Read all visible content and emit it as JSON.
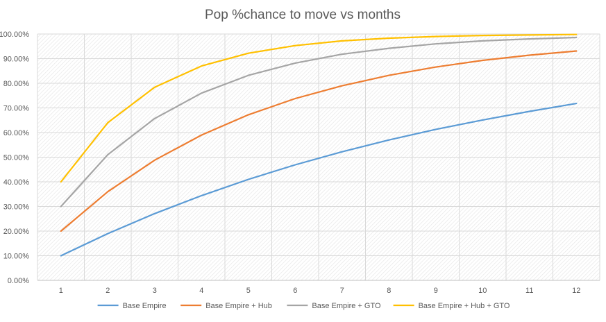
{
  "chart_data": {
    "type": "line",
    "title": "Pop %chance to move vs months",
    "xlabel": "",
    "ylabel": "",
    "x": [
      1,
      2,
      3,
      4,
      5,
      6,
      7,
      8,
      9,
      10,
      11,
      12
    ],
    "ylim": [
      0,
      100
    ],
    "y_ticks": [
      "0.00%",
      "10.00%",
      "20.00%",
      "30.00%",
      "40.00%",
      "50.00%",
      "60.00%",
      "70.00%",
      "80.00%",
      "90.00%",
      "100.00%"
    ],
    "grid": true,
    "legend_position": "bottom",
    "series": [
      {
        "name": "Base Empire",
        "color": "#5B9BD5",
        "values": [
          10.0,
          19.0,
          27.1,
          34.4,
          41.0,
          46.9,
          52.2,
          57.0,
          61.3,
          65.1,
          68.6,
          71.8
        ]
      },
      {
        "name": "Base Empire + Hub",
        "color": "#ED7D31",
        "values": [
          20.0,
          36.0,
          48.8,
          59.0,
          67.2,
          73.8,
          79.0,
          83.2,
          86.6,
          89.3,
          91.4,
          93.1
        ]
      },
      {
        "name": "Base Empire + GTO",
        "color": "#A5A5A5",
        "values": [
          30.0,
          51.0,
          65.7,
          76.0,
          83.2,
          88.2,
          91.8,
          94.2,
          96.0,
          97.2,
          98.0,
          98.6
        ]
      },
      {
        "name": "Base Empire + Hub + GTO",
        "color": "#FFC000",
        "values": [
          40.0,
          64.0,
          78.4,
          87.0,
          92.2,
          95.3,
          97.2,
          98.3,
          99.0,
          99.4,
          99.6,
          99.8
        ]
      }
    ]
  }
}
